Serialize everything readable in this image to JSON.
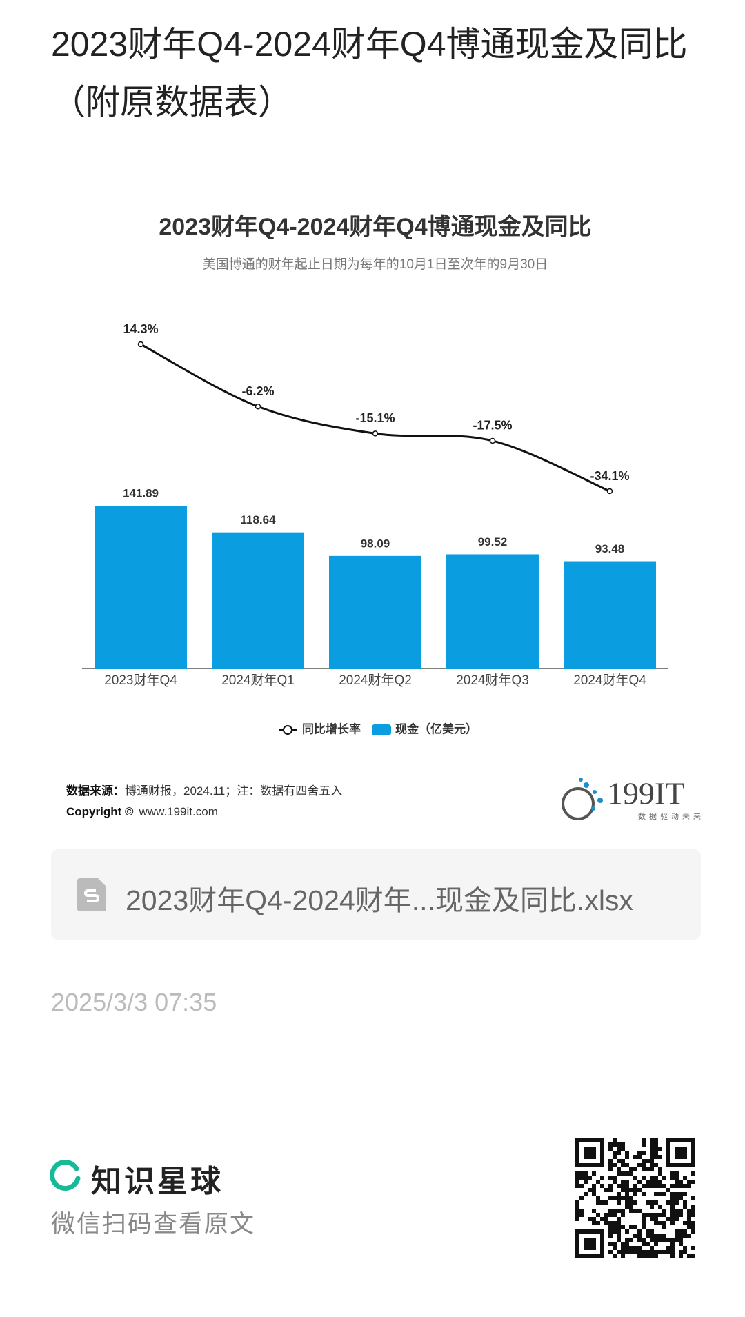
{
  "header": {
    "title": "2023财年Q4-2024财年Q4博通现金及同比（附原数据表）"
  },
  "chart_data": {
    "type": "bar",
    "title": "2023财年Q4-2024财年Q4博通现金及同比",
    "subtitle": "美国博通的财年起止日期为每年的10月1日至次年的9月30日",
    "categories": [
      "2023财年Q4",
      "2024财年Q1",
      "2024财年Q2",
      "2024财年Q3",
      "2024财年Q4"
    ],
    "series": [
      {
        "name": "同比增长率",
        "type": "line",
        "color": "#111111",
        "values": [
          14.3,
          -6.2,
          -15.1,
          -17.5,
          -34.1
        ],
        "value_labels": [
          "14.3%",
          "-6.2%",
          "-15.1%",
          "-17.5%",
          "-34.1%"
        ]
      },
      {
        "name": "现金（亿美元）",
        "type": "bar",
        "color": "#0a9ee0",
        "values": [
          141.89,
          118.64,
          98.09,
          99.52,
          93.48
        ]
      }
    ],
    "legend": "bottom"
  },
  "source": {
    "label": "数据来源：",
    "text": "博通财报，2024.11；注：数据有四舍五入",
    "copyright_label": "Copyright ©",
    "copyright_text": "www.199it.com"
  },
  "logo": {
    "text": "199IT",
    "tagline": "数据驱动未来"
  },
  "attachment": {
    "name": "2023财年Q4-2024财年...现金及同比.xlsx"
  },
  "timestamp": "2025/3/3 07:35",
  "footer": {
    "brand": "知识星球",
    "hint": "微信扫码查看原文"
  }
}
